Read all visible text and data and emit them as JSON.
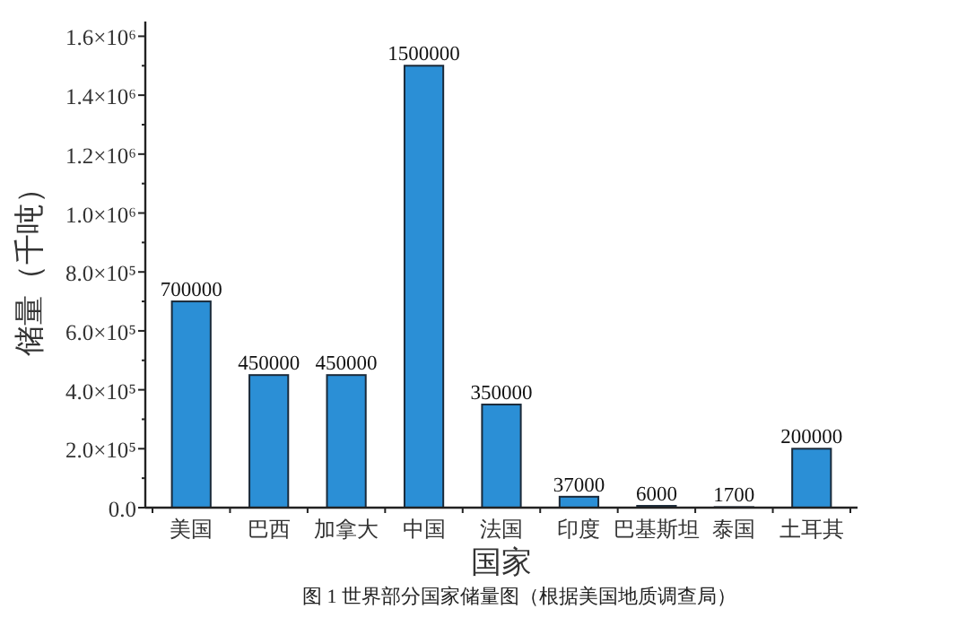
{
  "chart_data": {
    "type": "bar",
    "xlabel": "国家",
    "ylabel": "储量（千吨）",
    "categories": [
      "美国",
      "巴西",
      "加拿大",
      "中国",
      "法国",
      "印度",
      "巴基斯坦",
      "泰国",
      "土耳其"
    ],
    "series": [
      {
        "color": "#2b8fd6",
        "values": [
          700000,
          450000,
          450000,
          1500000,
          350000,
          37000,
          6000,
          1700,
          200000
        ]
      }
    ],
    "ylim": [
      0,
      1650000
    ],
    "yticks": [
      {
        "value": 0,
        "label": "0.0"
      },
      {
        "value": 200000,
        "label": "2.0×10⁵"
      },
      {
        "value": 400000,
        "label": "4.0×10⁵"
      },
      {
        "value": 600000,
        "label": "6.0×10⁵"
      },
      {
        "value": 800000,
        "label": "8.0×10⁵"
      },
      {
        "value": 1000000,
        "label": "1.0×10⁶"
      },
      {
        "value": 1200000,
        "label": "1.2×10⁶"
      },
      {
        "value": 1400000,
        "label": "1.4×10⁶"
      },
      {
        "value": 1600000,
        "label": "1.6×10⁶"
      }
    ],
    "data_labels": true,
    "annotations": [
      "图 1 世界部分国家储量图（根据美国地质调查局）"
    ]
  }
}
